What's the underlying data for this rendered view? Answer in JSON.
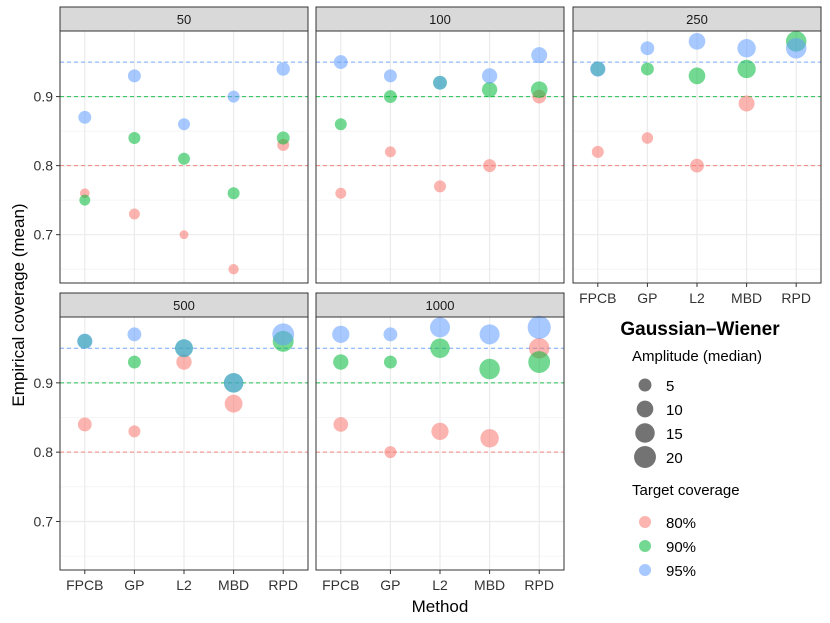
{
  "chart_data": {
    "type": "scatter",
    "title": "Gaussian–Wiener",
    "xlabel": "Method",
    "ylabel": "Empirical coverage (mean)",
    "ylim": [
      0.63,
      0.995
    ],
    "y_ticks": [
      0.7,
      0.8,
      0.9
    ],
    "y_tick_labels": [
      "0.7",
      "0.8",
      "0.9"
    ],
    "methods": [
      "FPCB",
      "GP",
      "L2",
      "MBD",
      "RPD"
    ],
    "reference_lines": [
      {
        "label": "80%",
        "value": 0.8,
        "color": "#F8766D"
      },
      {
        "label": "90%",
        "value": 0.9,
        "color": "#00BA38"
      },
      {
        "label": "95%",
        "value": 0.95,
        "color": "#619CFF"
      }
    ],
    "legend": {
      "title": "Gaussian–Wiener",
      "size_title": "Amplitude (median)",
      "size_entries": [
        {
          "label": "5",
          "value": 5
        },
        {
          "label": "10",
          "value": 10
        },
        {
          "label": "15",
          "value": 15
        },
        {
          "label": "20",
          "value": 20
        }
      ],
      "color_title": "Target coverage",
      "color_entries": [
        {
          "label": "80%",
          "color": "#F8766D"
        },
        {
          "label": "90%",
          "color": "#00BA38"
        },
        {
          "label": "95%",
          "color": "#619CFF"
        }
      ]
    },
    "facets": [
      {
        "label": "50",
        "series": [
          {
            "name": "80%",
            "y": [
              0.76,
              0.73,
              0.7,
              0.65,
              0.83
            ],
            "amplitude": [
              2,
              3,
              1.5,
              2.5,
              4
            ]
          },
          {
            "name": "90%",
            "y": [
              0.75,
              0.84,
              0.81,
              0.76,
              0.84
            ],
            "amplitude": [
              3,
              4,
              4,
              4,
              5
            ]
          },
          {
            "name": "95%",
            "y": [
              0.87,
              0.93,
              0.86,
              0.9,
              0.94
            ],
            "amplitude": [
              5,
              5,
              4,
              4,
              5.5
            ]
          }
        ]
      },
      {
        "label": "100",
        "series": [
          {
            "name": "80%",
            "y": [
              0.76,
              0.82,
              0.77,
              0.8,
              0.9
            ],
            "amplitude": [
              3,
              3,
              4,
              5,
              6
            ]
          },
          {
            "name": "90%",
            "y": [
              0.86,
              0.9,
              0.92,
              0.91,
              0.91
            ],
            "amplitude": [
              4,
              5,
              6,
              8,
              10
            ]
          },
          {
            "name": "95%",
            "y": [
              0.95,
              0.93,
              0.92,
              0.93,
              0.96
            ],
            "amplitude": [
              6,
              5,
              6,
              8,
              9
            ]
          }
        ]
      },
      {
        "label": "250",
        "series": [
          {
            "name": "80%",
            "y": [
              0.82,
              0.84,
              0.8,
              0.89,
              null
            ],
            "amplitude": [
              4,
              3.5,
              6,
              9,
              null
            ]
          },
          {
            "name": "90%",
            "y": [
              0.94,
              0.94,
              0.93,
              0.94,
              0.98
            ],
            "amplitude": [
              7,
              5,
              10,
              13,
              17
            ]
          },
          {
            "name": "95%",
            "y": [
              0.94,
              0.97,
              0.98,
              0.97,
              0.97
            ],
            "amplitude": [
              8,
              6,
              10,
              13,
              17
            ]
          }
        ]
      },
      {
        "label": "500",
        "series": [
          {
            "name": "80%",
            "y": [
              0.84,
              0.83,
              0.93,
              0.87,
              null
            ],
            "amplitude": [
              6,
              4,
              8,
              12,
              null
            ]
          },
          {
            "name": "90%",
            "y": [
              0.96,
              0.93,
              0.95,
              0.9,
              0.96
            ],
            "amplitude": [
              7,
              5,
              12,
              15,
              18
            ]
          },
          {
            "name": "95%",
            "y": [
              0.96,
              0.97,
              0.95,
              0.9,
              0.97
            ],
            "amplitude": [
              8,
              6,
              12,
              15,
              20
            ]
          }
        ]
      },
      {
        "label": "1000",
        "series": [
          {
            "name": "80%",
            "y": [
              0.84,
              0.8,
              0.83,
              0.82,
              0.95
            ],
            "amplitude": [
              7,
              4,
              11,
              13,
              17
            ]
          },
          {
            "name": "90%",
            "y": [
              0.93,
              0.93,
              0.95,
              0.92,
              0.93
            ],
            "amplitude": [
              8,
              5,
              15,
              17,
              20
            ]
          },
          {
            "name": "95%",
            "y": [
              0.97,
              0.97,
              0.98,
              0.97,
              0.98
            ],
            "amplitude": [
              11,
              6,
              16,
              16,
              23
            ]
          }
        ]
      }
    ]
  }
}
